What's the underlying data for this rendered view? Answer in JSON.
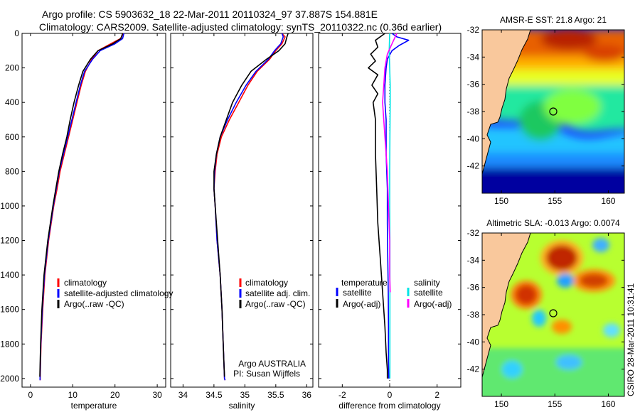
{
  "header": {
    "title_line1": "Argo profile: CS 5903632_18 22-Mar-2011 20110324_97 37.887S 154.881E",
    "title_line2": "Climatology: CARS2009. Satellite-adjusted climatology: synTS_20110322.nc (0.36d earlier)"
  },
  "side_stamp": "CSIRO 28-Mar-2011 10:31:41",
  "colors": {
    "climatology": "#ff0000",
    "satellite": "#0000ff",
    "argo": "#000000",
    "sat_salinity": "#00e5e5",
    "argo_salinity": "#ff00ff",
    "land": "#f9c89c"
  },
  "chart_data": [
    {
      "id": "temperature",
      "type": "line",
      "xlabel": "temperature",
      "ylabel": "",
      "xlim": [
        -2,
        32
      ],
      "ylim": [
        2050,
        0
      ],
      "xticks": [
        0,
        10,
        20,
        30
      ],
      "xtick_labels": [
        "0",
        "10",
        "20",
        "30"
      ],
      "yticks": [
        0,
        200,
        400,
        600,
        800,
        1000,
        1200,
        1400,
        1600,
        1800,
        2000
      ],
      "ytick_labels": [
        "0",
        "200",
        "400",
        "600",
        "800",
        "1000",
        "1200",
        "1400",
        "1600",
        "1800",
        "2000"
      ],
      "legend": [
        "climatology",
        "satellite-adjusted climatology",
        "Argo(..raw -QC)"
      ],
      "legend_placement": "bottom-right",
      "annotation": [],
      "series": [
        {
          "name": "climatology",
          "color": "#ff0000",
          "x": [
            22,
            21.3,
            19,
            16,
            14.5,
            13,
            12,
            11,
            10,
            9,
            8,
            7,
            6.3,
            5.5,
            4.3,
            3.4,
            2.9,
            2.5,
            2.4,
            2.3,
            2.3
          ],
          "y": [
            0,
            30,
            60,
            100,
            150,
            220,
            300,
            400,
            500,
            600,
            700,
            800,
            900,
            1000,
            1200,
            1400,
            1600,
            1800,
            1900,
            2000,
            2010
          ]
        },
        {
          "name": "satellite-adjusted climatology",
          "color": "#0000ff",
          "x": [
            22.1,
            21.8,
            20,
            16.5,
            14.7,
            12.8,
            11.8,
            10.8,
            9.8,
            8.8,
            7.8,
            6.8,
            6.1,
            5.4,
            4.2,
            3.3,
            2.8,
            2.45,
            2.35,
            2.25,
            2.25
          ],
          "y": [
            0,
            30,
            60,
            100,
            150,
            220,
            300,
            400,
            500,
            600,
            700,
            800,
            900,
            1000,
            1200,
            1400,
            1600,
            1800,
            1900,
            2000,
            2010
          ]
        },
        {
          "name": "Argo(..raw -QC)",
          "color": "#000000",
          "x": [
            21.8,
            21.4,
            19.5,
            16,
            14.2,
            12.4,
            11.4,
            10.3,
            9.4,
            8.6,
            7.6,
            6.7,
            6,
            5.3,
            4.1,
            3.2,
            2.7,
            2.4,
            2.3,
            2.2
          ],
          "y": [
            0,
            30,
            60,
            100,
            150,
            220,
            300,
            400,
            500,
            600,
            700,
            800,
            900,
            1000,
            1200,
            1400,
            1600,
            1800,
            1900,
            1990
          ]
        }
      ]
    },
    {
      "id": "salinity",
      "type": "line",
      "xlabel": "salinity",
      "ylabel": "",
      "xlim": [
        33.8,
        36.1
      ],
      "ylim": [
        2050,
        0
      ],
      "xticks": [
        34,
        34.5,
        35,
        35.5,
        36
      ],
      "xtick_labels": [
        "34",
        "34.5",
        "35",
        "35.5",
        "36"
      ],
      "yticks": [
        0,
        200,
        400,
        600,
        800,
        1000,
        1200,
        1400,
        1600,
        1800,
        2000
      ],
      "ytick_labels": [],
      "legend": [
        "climatology",
        "satellite adj. clim.",
        "Argo(..raw -QC)"
      ],
      "legend_placement": "bottom-right",
      "annotation": [
        "Argo AUSTRALIA",
        "PI: Susan Wijffels"
      ],
      "series": [
        {
          "name": "climatology",
          "color": "#ff0000",
          "x": [
            35.6,
            35.65,
            35.6,
            35.5,
            35.4,
            35.2,
            35.05,
            34.9,
            34.75,
            34.62,
            34.55,
            34.52,
            34.5,
            34.52,
            34.55,
            34.6,
            34.63,
            34.65,
            34.66,
            34.67,
            34.68
          ],
          "y": [
            0,
            20,
            60,
            100,
            150,
            220,
            300,
            400,
            500,
            600,
            700,
            800,
            900,
            1000,
            1200,
            1400,
            1600,
            1800,
            1900,
            2000,
            2010
          ]
        },
        {
          "name": "satellite adj. clim.",
          "color": "#0000ff",
          "x": [
            35.6,
            35.62,
            35.58,
            35.48,
            35.38,
            35.18,
            35.02,
            34.86,
            34.72,
            34.6,
            34.54,
            34.51,
            34.5,
            34.52,
            34.55,
            34.6,
            34.63,
            34.65,
            34.66,
            34.67,
            34.68
          ],
          "y": [
            0,
            20,
            60,
            100,
            150,
            220,
            300,
            400,
            500,
            600,
            700,
            800,
            900,
            1000,
            1200,
            1400,
            1600,
            1800,
            1900,
            2000,
            2010
          ]
        },
        {
          "name": "Argo(..raw -QC)",
          "color": "#000000",
          "x": [
            35.7,
            35.68,
            35.65,
            35.55,
            35.35,
            35.1,
            34.95,
            34.8,
            34.7,
            34.6,
            34.54,
            34.5,
            34.5,
            34.52,
            34.56,
            34.6,
            34.63,
            34.65,
            34.66,
            34.67
          ],
          "y": [
            0,
            20,
            60,
            100,
            150,
            220,
            300,
            400,
            500,
            600,
            700,
            800,
            900,
            1000,
            1200,
            1400,
            1600,
            1800,
            1900,
            1990
          ]
        }
      ]
    },
    {
      "id": "difference",
      "type": "line",
      "xlabel": "difference from climatology",
      "ylabel": "",
      "xlim": [
        -3,
        3
      ],
      "ylim": [
        2050,
        0
      ],
      "xticks": [
        -2,
        0,
        2
      ],
      "xtick_labels": [
        "-2",
        "0",
        "2"
      ],
      "yticks": [
        0,
        200,
        400,
        600,
        800,
        1000,
        1200,
        1400,
        1600,
        1800,
        2000
      ],
      "ytick_labels": [],
      "legend_temperature_title": "temperature",
      "legend_salinity_title": "salinity",
      "legend": [
        "satellite",
        "Argo(-adj)",
        "satellite",
        "Argo(-adj)"
      ],
      "legend_placement": "bottom",
      "annotation": [],
      "series": [
        {
          "name": "temperature satellite",
          "color": "#0000ff",
          "x": [
            0.1,
            0.3,
            0.8,
            0.4,
            0.1,
            -0.1,
            -0.15,
            -0.2,
            -0.2,
            -0.15,
            -0.15,
            -0.1,
            -0.1,
            -0.08,
            -0.06,
            -0.05,
            -0.05,
            -0.04
          ],
          "y": [
            0,
            20,
            40,
            70,
            100,
            150,
            200,
            300,
            400,
            500,
            700,
            900,
            1100,
            1300,
            1500,
            1700,
            1900,
            2000
          ]
        },
        {
          "name": "temperature Argo(-adj)",
          "color": "#000000",
          "x": [
            -0.2,
            -0.6,
            -0.5,
            -0.8,
            -0.6,
            -0.9,
            -0.5,
            -0.75,
            -0.5,
            -0.7,
            -0.6,
            -0.6,
            -0.55,
            -0.5,
            -0.4,
            -0.3,
            -0.2,
            -0.15,
            -0.1,
            -0.1
          ],
          "y": [
            0,
            40,
            80,
            120,
            160,
            200,
            240,
            300,
            350,
            400,
            500,
            700,
            900,
            1100,
            1300,
            1500,
            1700,
            1850,
            1950,
            2000
          ]
        },
        {
          "name": "salinity satellite",
          "color": "#00e5e5",
          "x": [
            0,
            -0.02,
            0,
            0.02,
            0.02,
            0.01,
            0,
            0,
            0.01,
            0.01,
            0.01,
            0.01,
            0.01
          ],
          "y": [
            0,
            100,
            200,
            300,
            400,
            600,
            800,
            1000,
            1200,
            1400,
            1600,
            1800,
            2000
          ]
        },
        {
          "name": "salinity Argo(-adj)",
          "color": "#ff00ff",
          "x": [
            0.3,
            0.1,
            -0.1,
            -0.2,
            -0.25,
            -0.3,
            -0.2,
            -0.1,
            -0.05,
            0,
            0,
            0.02
          ],
          "y": [
            0,
            60,
            120,
            200,
            300,
            400,
            600,
            800,
            1000,
            1200,
            1400,
            1500
          ]
        }
      ]
    },
    {
      "id": "sst_map",
      "type": "heatmap",
      "title": "AMSR-E SST: 21.8  Argo: 21",
      "xlim": [
        148.2,
        161.5
      ],
      "ylim": [
        -44,
        -32
      ],
      "xticks": [
        150,
        155,
        160
      ],
      "xtick_labels": [
        "150",
        "155",
        "160"
      ],
      "yticks": [
        -32,
        -34,
        -36,
        -38,
        -40,
        -42
      ],
      "ytick_labels": [
        "-32",
        "-34",
        "-36",
        "-38",
        "-40",
        "-42"
      ],
      "marker": {
        "lon": 154.881,
        "lat": -37.887
      }
    },
    {
      "id": "sla_map",
      "type": "heatmap",
      "title": "Altimetric SLA: -0.013  Argo: 0.0074",
      "xlim": [
        148.2,
        161.5
      ],
      "ylim": [
        -44,
        -32
      ],
      "xticks": [
        150,
        155,
        160
      ],
      "xtick_labels": [
        "150",
        "155",
        "160"
      ],
      "yticks": [
        -32,
        -34,
        -36,
        -38,
        -40,
        -42
      ],
      "ytick_labels": [
        "-32",
        "-34",
        "-36",
        "-38",
        "-40",
        "-42"
      ],
      "marker": {
        "lon": 154.881,
        "lat": -37.887
      }
    }
  ]
}
